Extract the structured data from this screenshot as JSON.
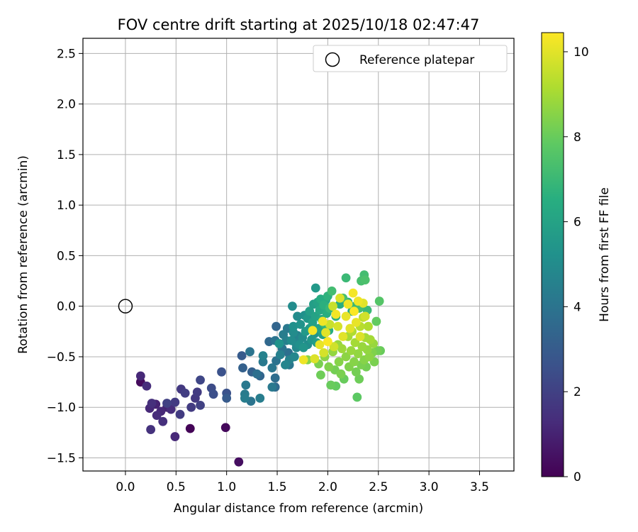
{
  "chart_data": {
    "type": "scatter",
    "title": "FOV centre drift starting at 2025/10/18 02:47:47",
    "xlabel": "Angular distance from reference (arcmin)",
    "ylabel": "Rotation from reference (arcmin)",
    "xlim": [
      -0.42,
      3.84
    ],
    "ylim": [
      -1.63,
      2.65
    ],
    "xticks": [
      0.0,
      0.5,
      1.0,
      1.5,
      2.0,
      2.5,
      3.0,
      3.5
    ],
    "xtick_labels": [
      "0.0",
      "0.5",
      "1.0",
      "1.5",
      "2.0",
      "2.5",
      "3.0",
      "3.5"
    ],
    "yticks": [
      -1.5,
      -1.0,
      -0.5,
      0.0,
      0.5,
      1.0,
      1.5,
      2.0,
      2.5
    ],
    "ytick_labels": [
      "−1.5",
      "−1.0",
      "−0.5",
      "0.0",
      "0.5",
      "1.0",
      "1.5",
      "2.0",
      "2.5"
    ],
    "grid": true,
    "legend": {
      "position": "top-right",
      "entries": [
        {
          "label": "Reference platepar",
          "marker": "open-circle"
        }
      ]
    },
    "reference_point": {
      "x": 0.0,
      "y": 0.0
    },
    "colorbar": {
      "label": "Hours from first FF file",
      "colormap": "viridis",
      "range": [
        0,
        10.45
      ],
      "ticks": [
        0,
        2,
        4,
        6,
        8,
        10
      ],
      "tick_labels": [
        "0",
        "2",
        "4",
        "6",
        "8",
        "10"
      ]
    },
    "series": [
      {
        "points": [
          [
            0.15,
            -0.69,
            1.2
          ],
          [
            0.15,
            -0.75,
            0.3
          ],
          [
            0.21,
            -0.79,
            1.3
          ],
          [
            0.24,
            -1.01,
            1.2
          ],
          [
            0.26,
            -0.96,
            1.4
          ],
          [
            0.25,
            -1.22,
            1.5
          ],
          [
            0.3,
            -0.97,
            1.0
          ],
          [
            0.31,
            -1.08,
            1.3
          ],
          [
            0.35,
            -1.04,
            1.2
          ],
          [
            0.37,
            -1.14,
            1.4
          ],
          [
            0.41,
            -1.0,
            1.0
          ],
          [
            0.41,
            -0.96,
            2.0
          ],
          [
            0.45,
            -1.02,
            1.3
          ],
          [
            0.49,
            -0.95,
            1.8
          ],
          [
            0.49,
            -1.29,
            1.2
          ],
          [
            0.54,
            -1.07,
            1.8
          ],
          [
            0.55,
            -0.82,
            1.7
          ],
          [
            0.59,
            -0.86,
            1.9
          ],
          [
            0.64,
            -1.21,
            0.1
          ],
          [
            0.65,
            -1.0,
            1.8
          ],
          [
            0.69,
            -0.91,
            1.7
          ],
          [
            0.71,
            -0.85,
            1.8
          ],
          [
            0.74,
            -0.98,
            2.0
          ],
          [
            0.74,
            -0.73,
            2.2
          ],
          [
            0.85,
            -0.81,
            2.4
          ],
          [
            0.87,
            -0.87,
            2.5
          ],
          [
            0.95,
            -0.65,
            2.6
          ],
          [
            0.99,
            -1.2,
            0.2
          ],
          [
            1.0,
            -0.86,
            2.6
          ],
          [
            1.0,
            -0.91,
            3.0
          ],
          [
            1.12,
            -1.54,
            0.4
          ],
          [
            1.15,
            -0.49,
            3.0
          ],
          [
            1.16,
            -0.61,
            3.2
          ],
          [
            1.18,
            -0.87,
            4.3
          ],
          [
            1.18,
            -0.91,
            4.4
          ],
          [
            1.19,
            -0.78,
            4.2
          ],
          [
            1.23,
            -0.45,
            4.0
          ],
          [
            1.24,
            -0.94,
            4.0
          ],
          [
            1.25,
            -0.65,
            3.2
          ],
          [
            1.3,
            -0.67,
            3.8
          ],
          [
            1.33,
            -0.91,
            4.4
          ],
          [
            1.33,
            -0.69,
            3.4
          ],
          [
            1.36,
            -0.49,
            4.6
          ],
          [
            1.36,
            -0.55,
            4.2
          ],
          [
            1.42,
            -0.35,
            3.5
          ],
          [
            1.45,
            -0.61,
            4.1
          ],
          [
            1.45,
            -0.8,
            4.2
          ],
          [
            1.48,
            -0.8,
            3.6
          ],
          [
            1.48,
            -0.71,
            3.7
          ],
          [
            1.48,
            -0.34,
            4.0
          ],
          [
            1.49,
            -0.54,
            3.9
          ],
          [
            1.49,
            -0.2,
            3.4
          ],
          [
            1.52,
            -0.37,
            5.3
          ],
          [
            1.53,
            -0.48,
            4.5
          ],
          [
            1.55,
            -0.42,
            4.0
          ],
          [
            1.56,
            -0.28,
            4.4
          ],
          [
            1.58,
            -0.58,
            4.7
          ],
          [
            1.59,
            -0.34,
            4.5
          ],
          [
            1.6,
            -0.22,
            4.2
          ],
          [
            1.61,
            -0.46,
            3.8
          ],
          [
            1.62,
            -0.53,
            4.6
          ],
          [
            1.62,
            -0.58,
            4.1
          ],
          [
            1.64,
            -0.34,
            5.0
          ],
          [
            1.65,
            0.0,
            5.0
          ],
          [
            1.66,
            -0.26,
            5.0
          ],
          [
            1.66,
            -0.2,
            5.2
          ],
          [
            1.67,
            -0.5,
            4.8
          ],
          [
            1.68,
            -0.36,
            4.7
          ],
          [
            1.69,
            -0.41,
            4.9
          ],
          [
            1.7,
            -0.1,
            5.0
          ],
          [
            1.7,
            -0.29,
            4.6
          ],
          [
            1.72,
            -0.38,
            5.2
          ],
          [
            1.73,
            -0.18,
            5.3
          ],
          [
            1.75,
            -0.31,
            5.0
          ],
          [
            1.76,
            -0.41,
            5.4
          ],
          [
            1.77,
            -0.09,
            5.2
          ],
          [
            1.78,
            -0.25,
            5.6
          ],
          [
            1.8,
            -0.38,
            5.1
          ],
          [
            1.8,
            -0.12,
            5.5
          ],
          [
            1.82,
            -0.22,
            5.7
          ],
          [
            1.82,
            -0.05,
            5.8
          ],
          [
            1.84,
            -0.33,
            5.5
          ],
          [
            1.85,
            -0.16,
            5.9
          ],
          [
            1.86,
            0.02,
            5.8
          ],
          [
            1.87,
            -0.27,
            5.4
          ],
          [
            1.88,
            -0.1,
            6.0
          ],
          [
            1.88,
            0.18,
            5.6
          ],
          [
            1.89,
            -0.36,
            5.8
          ],
          [
            1.9,
            0.04,
            6.0
          ],
          [
            1.91,
            -0.22,
            6.1
          ],
          [
            1.92,
            -0.04,
            6.2
          ],
          [
            1.93,
            0.07,
            6.4
          ],
          [
            1.94,
            -0.13,
            6.2
          ],
          [
            1.95,
            -0.28,
            6.0
          ],
          [
            1.96,
            0.01,
            6.6
          ],
          [
            1.97,
            -0.18,
            6.8
          ],
          [
            1.98,
            0.06,
            6.3
          ],
          [
            1.99,
            -0.07,
            6.5
          ],
          [
            2.0,
            0.1,
            6.7
          ],
          [
            2.01,
            -0.24,
            6.5
          ],
          [
            2.02,
            -0.02,
            6.9
          ],
          [
            2.04,
            0.15,
            7.2
          ],
          [
            2.08,
            -0.1,
            6.6
          ],
          [
            2.12,
            0.02,
            6.5
          ],
          [
            2.15,
            0.08,
            7.3
          ],
          [
            2.18,
            0.28,
            7.0
          ],
          [
            2.2,
            0.04,
            6.8
          ],
          [
            2.24,
            -0.05,
            6.4
          ],
          [
            2.27,
            0.0,
            6.9
          ],
          [
            2.31,
            -0.02,
            7.2
          ],
          [
            2.33,
            0.25,
            7.3
          ],
          [
            2.36,
            0.31,
            7.2
          ],
          [
            2.37,
            0.26,
            7.4
          ],
          [
            2.39,
            -0.04,
            7.0
          ],
          [
            1.8,
            -0.53,
            8.5
          ],
          [
            1.91,
            -0.57,
            8.3
          ],
          [
            1.93,
            -0.68,
            8.1
          ],
          [
            1.97,
            -0.5,
            8.6
          ],
          [
            2.01,
            -0.6,
            8.4
          ],
          [
            2.03,
            -0.78,
            8.0
          ],
          [
            2.05,
            -0.45,
            8.7
          ],
          [
            2.07,
            -0.63,
            8.2
          ],
          [
            2.08,
            -0.79,
            7.9
          ],
          [
            2.1,
            -0.38,
            8.8
          ],
          [
            2.11,
            -0.55,
            8.5
          ],
          [
            2.13,
            -0.67,
            8.3
          ],
          [
            2.14,
            -0.42,
            8.9
          ],
          [
            2.16,
            -0.72,
            8.0
          ],
          [
            2.18,
            -0.5,
            8.6
          ],
          [
            2.2,
            -0.3,
            9.0
          ],
          [
            2.21,
            -0.6,
            8.4
          ],
          [
            2.23,
            -0.44,
            8.8
          ],
          [
            2.24,
            -0.25,
            9.2
          ],
          [
            2.26,
            -0.55,
            8.5
          ],
          [
            2.27,
            -0.36,
            9.0
          ],
          [
            2.28,
            -0.65,
            8.2
          ],
          [
            2.29,
            -0.9,
            7.8
          ],
          [
            2.3,
            -0.47,
            8.7
          ],
          [
            2.31,
            -0.72,
            8.1
          ],
          [
            2.32,
            -0.2,
            9.3
          ],
          [
            2.33,
            -0.58,
            8.3
          ],
          [
            2.34,
            -0.4,
            8.8
          ],
          [
            2.35,
            -0.11,
            9.4
          ],
          [
            2.36,
            -0.53,
            8.5
          ],
          [
            2.37,
            -0.31,
            9.0
          ],
          [
            2.38,
            -0.6,
            8.2
          ],
          [
            2.39,
            -0.43,
            8.7
          ],
          [
            2.4,
            -0.2,
            9.2
          ],
          [
            2.41,
            -0.5,
            8.6
          ],
          [
            2.42,
            -0.33,
            9.0
          ],
          [
            2.44,
            -0.46,
            8.4
          ],
          [
            2.45,
            -0.37,
            8.8
          ],
          [
            2.46,
            -0.55,
            8.3
          ],
          [
            2.48,
            -0.15,
            7.9
          ],
          [
            2.49,
            -0.44,
            8.2
          ],
          [
            2.51,
            0.05,
            7.6
          ],
          [
            2.52,
            -0.44,
            8.0
          ],
          [
            2.05,
            0.0,
            9.6
          ],
          [
            2.1,
            -0.2,
            9.8
          ],
          [
            2.12,
            0.08,
            9.9
          ],
          [
            2.15,
            -0.3,
            10.0
          ],
          [
            2.18,
            -0.1,
            10.1
          ],
          [
            2.2,
            0.02,
            10.2
          ],
          [
            2.22,
            -0.22,
            10.0
          ],
          [
            2.25,
            0.13,
            10.3
          ],
          [
            2.26,
            -0.05,
            10.4
          ],
          [
            2.28,
            -0.16,
            10.1
          ],
          [
            2.3,
            0.05,
            10.2
          ],
          [
            2.32,
            -0.3,
            9.9
          ],
          [
            2.35,
            0.03,
            10.0
          ],
          [
            2.37,
            -0.1,
            9.7
          ],
          [
            1.85,
            -0.24,
            10.3
          ],
          [
            1.87,
            -0.52,
            9.9
          ],
          [
            1.92,
            -0.38,
            10.1
          ],
          [
            1.95,
            -0.15,
            10.2
          ],
          [
            1.96,
            -0.46,
            9.8
          ],
          [
            1.98,
            -0.26,
            10.0
          ],
          [
            2.0,
            -0.35,
            10.4
          ],
          [
            2.02,
            -0.18,
            9.6
          ],
          [
            2.06,
            -0.4,
            9.7
          ],
          [
            2.08,
            -0.08,
            10.3
          ],
          [
            1.76,
            -0.53,
            10.2
          ]
        ]
      }
    ]
  }
}
